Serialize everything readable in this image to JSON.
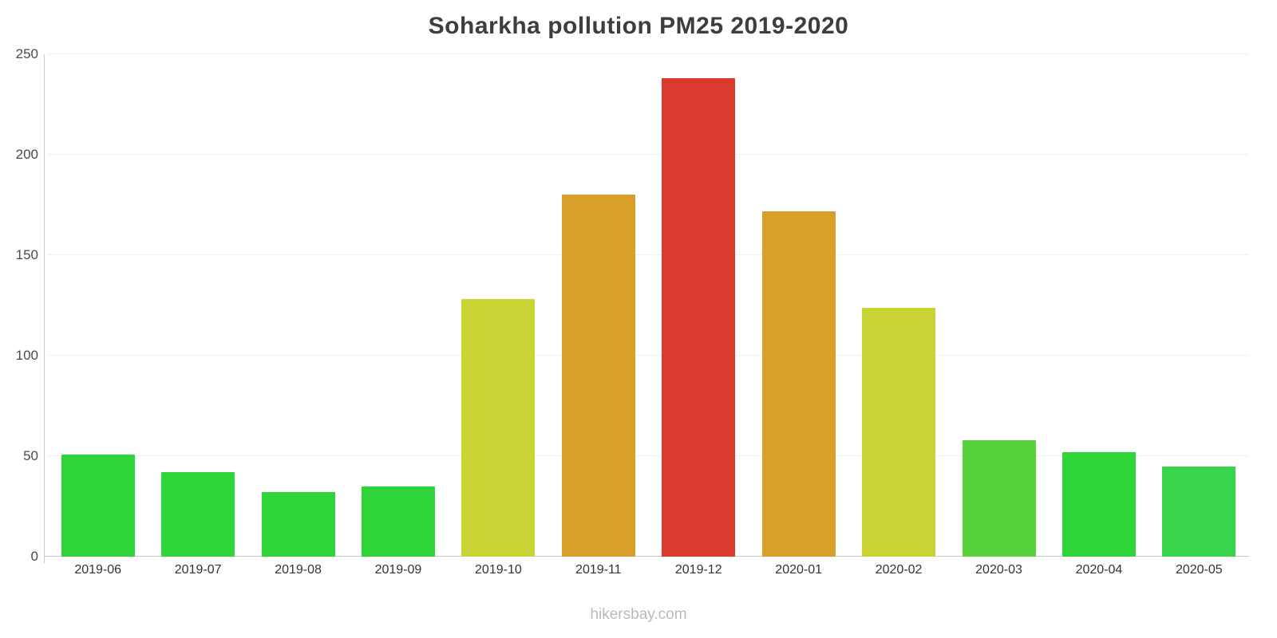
{
  "page": {
    "title": "Soharkha pollution PM25 2019-2020",
    "footer": "hikersbay.com"
  },
  "chart_data": {
    "type": "bar",
    "title": "Soharkha pollution PM25 2019-2020",
    "xlabel": "",
    "ylabel": "",
    "ylim": [
      0,
      250
    ],
    "yticks": [
      0,
      50,
      100,
      150,
      200,
      250
    ],
    "grid": true,
    "legend": "none",
    "categories": [
      "2019-06",
      "2019-07",
      "2019-08",
      "2019-09",
      "2019-10",
      "2019-11",
      "2019-12",
      "2020-01",
      "2020-02",
      "2020-03",
      "2020-04",
      "2020-05"
    ],
    "values": [
      51,
      42,
      32,
      35,
      128,
      180,
      238,
      172,
      124,
      58,
      52,
      45
    ],
    "bar_colors": [
      "#2fd439",
      "#2fd439",
      "#2fd439",
      "#2fd439",
      "#c9d334",
      "#d8a02b",
      "#db3a2e",
      "#d8a02b",
      "#c9d334",
      "#57d23c",
      "#2fd439",
      "#38d44c"
    ],
    "units": "PM2.5"
  }
}
